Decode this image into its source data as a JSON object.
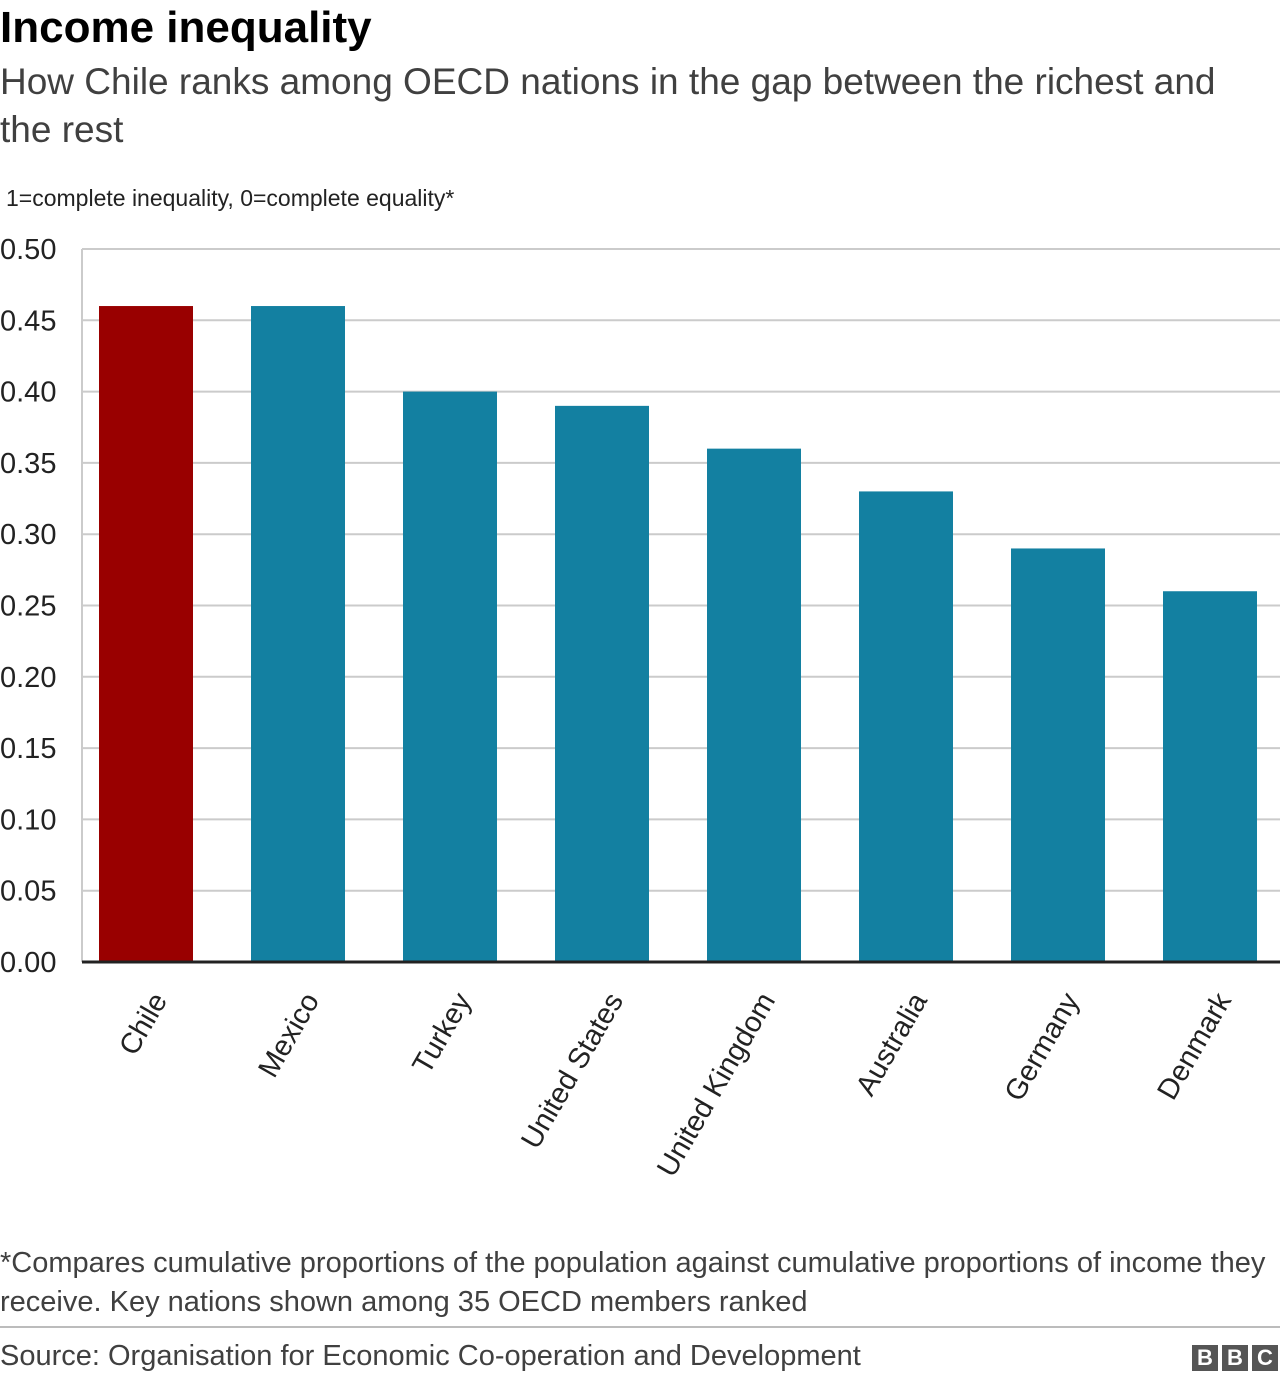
{
  "header": {
    "title": "Income inequality",
    "subtitle": "How Chile ranks among OECD nations in the gap between the richest and the rest"
  },
  "chart_data": {
    "type": "bar",
    "ylabel": "1=complete inequality, 0=complete equality*",
    "ylim": [
      0,
      0.5
    ],
    "yticks": [
      "0.00",
      "0.05",
      "0.10",
      "0.15",
      "0.20",
      "0.25",
      "0.30",
      "0.35",
      "0.40",
      "0.45",
      "0.50"
    ],
    "categories": [
      "Chile",
      "Mexico",
      "Turkey",
      "United States",
      "United Kingdom",
      "Australia",
      "Germany",
      "Denmark"
    ],
    "values": [
      0.46,
      0.46,
      0.4,
      0.39,
      0.36,
      0.33,
      0.29,
      0.26
    ],
    "highlight_category": "Chile",
    "grid": true,
    "colors": {
      "highlight": "#990000",
      "default": "#1380A1",
      "grid": "#cbcbcb",
      "axis": "#222222"
    }
  },
  "footer": {
    "footnote": "*Compares cumulative proportions of the population against cumulative proportions of income they receive. Key nations shown among 35 OECD members ranked",
    "source": "Source: Organisation for Economic Co-operation and Development",
    "logo_letters": [
      "B",
      "B",
      "C"
    ]
  }
}
